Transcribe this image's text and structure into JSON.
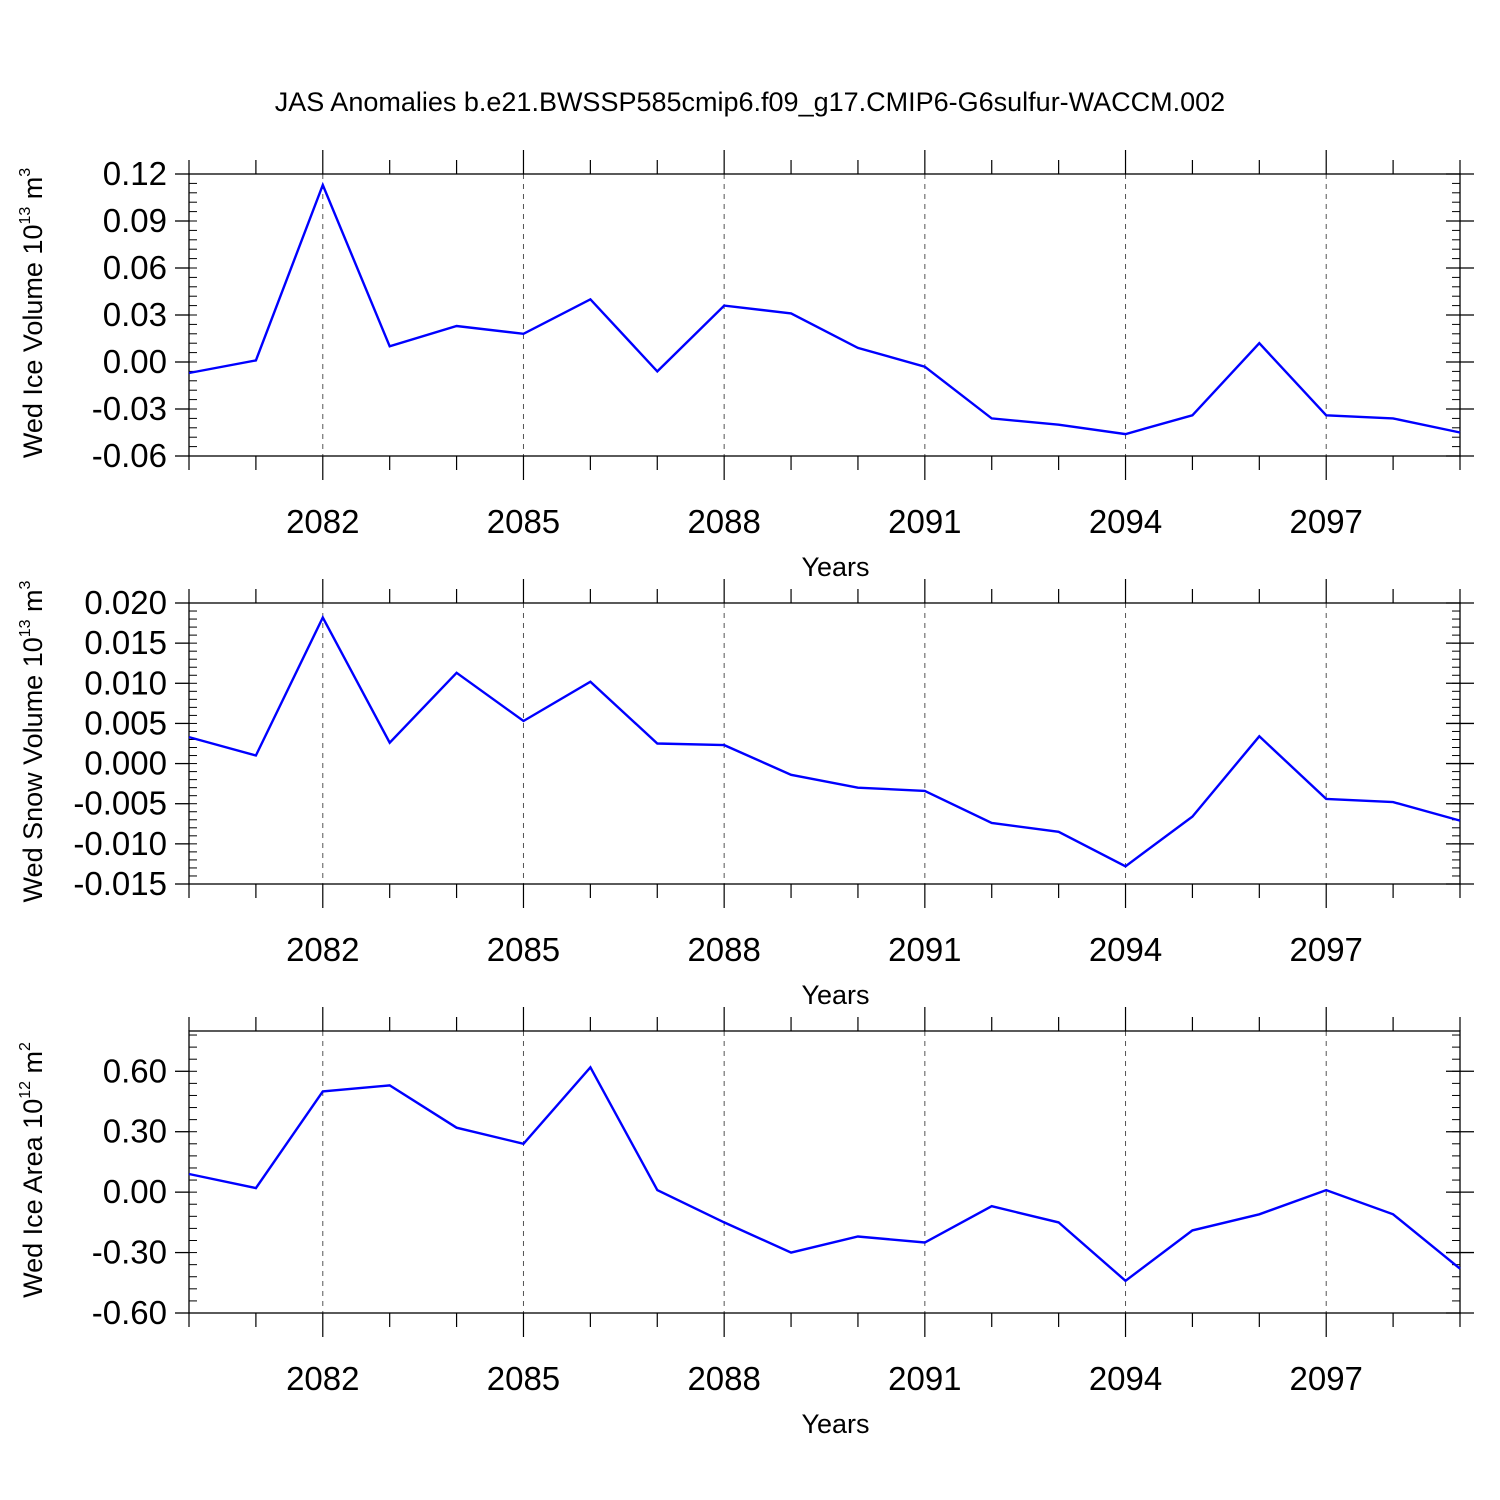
{
  "figure": {
    "title": "JAS Anomalies b.e21.BWSSP585cmip6.f09_g17.CMIP6-G6sulfur-WACCM.002"
  },
  "colors": {
    "line": "#0000ff",
    "axis": "#000000",
    "grid": "#555555",
    "background": "#ffffff"
  },
  "chart_data": [
    {
      "type": "line",
      "title": "",
      "xlabel": "Years",
      "ylabel_main": "Wed Ice Volume 10",
      "ylabel_exp": "13",
      "ylabel_unit": " m",
      "ylabel_unit_exp": "3",
      "x": [
        2080,
        2081,
        2082,
        2083,
        2084,
        2085,
        2086,
        2087,
        2088,
        2089,
        2090,
        2091,
        2092,
        2093,
        2094,
        2095,
        2096,
        2097,
        2098,
        2099
      ],
      "xlim": [
        2080,
        2099
      ],
      "xticks": [
        2082,
        2085,
        2088,
        2091,
        2094,
        2097
      ],
      "ylim": [
        -0.06,
        0.12
      ],
      "yticks": [
        -0.06,
        -0.03,
        0.0,
        0.03,
        0.06,
        0.09,
        0.12
      ],
      "ytick_labels": [
        "-0.06",
        "-0.03",
        "0.00",
        "0.03",
        "0.06",
        "0.09",
        "0.12"
      ],
      "series": [
        {
          "name": "Wed Ice Volume",
          "values": [
            -0.007,
            0.001,
            0.113,
            0.01,
            0.023,
            0.018,
            0.04,
            -0.006,
            0.036,
            0.031,
            0.009,
            -0.003,
            -0.036,
            -0.04,
            -0.046,
            -0.034,
            0.012,
            -0.034,
            -0.036,
            -0.045
          ]
        }
      ]
    },
    {
      "type": "line",
      "title": "",
      "xlabel": "Years",
      "ylabel_main": "Wed Snow Volume 10",
      "ylabel_exp": "13",
      "ylabel_unit": " m",
      "ylabel_unit_exp": "3",
      "x": [
        2080,
        2081,
        2082,
        2083,
        2084,
        2085,
        2086,
        2087,
        2088,
        2089,
        2090,
        2091,
        2092,
        2093,
        2094,
        2095,
        2096,
        2097,
        2098,
        2099
      ],
      "xlim": [
        2080,
        2099
      ],
      "xticks": [
        2082,
        2085,
        2088,
        2091,
        2094,
        2097
      ],
      "ylim": [
        -0.015,
        0.02
      ],
      "yticks": [
        -0.015,
        -0.01,
        -0.005,
        0.0,
        0.005,
        0.01,
        0.015,
        0.02
      ],
      "ytick_labels": [
        "-0.015",
        "-0.010",
        "-0.005",
        "0.000",
        "0.005",
        "0.010",
        "0.015",
        "0.020"
      ],
      "series": [
        {
          "name": "Wed Snow Volume",
          "values": [
            0.0033,
            0.001,
            0.0182,
            0.0026,
            0.0113,
            0.0053,
            0.0102,
            0.0025,
            0.0023,
            -0.0014,
            -0.003,
            -0.0034,
            -0.0074,
            -0.0085,
            -0.0128,
            -0.0066,
            0.0034,
            -0.0044,
            -0.0048,
            -0.0071
          ]
        }
      ]
    },
    {
      "type": "line",
      "title": "",
      "xlabel": "Years",
      "ylabel_main": "Wed Ice Area 10",
      "ylabel_exp": "12",
      "ylabel_unit": " m",
      "ylabel_unit_exp": "2",
      "x": [
        2080,
        2081,
        2082,
        2083,
        2084,
        2085,
        2086,
        2087,
        2088,
        2089,
        2090,
        2091,
        2092,
        2093,
        2094,
        2095,
        2096,
        2097,
        2098,
        2099
      ],
      "xlim": [
        2080,
        2099
      ],
      "xticks": [
        2082,
        2085,
        2088,
        2091,
        2094,
        2097
      ],
      "ylim": [
        -0.6,
        0.8
      ],
      "yticks": [
        -0.6,
        -0.3,
        0.0,
        0.3,
        0.6
      ],
      "ytick_labels": [
        "-0.60",
        "-0.30",
        "0.00",
        "0.30",
        "0.60"
      ],
      "series": [
        {
          "name": "Wed Ice Area",
          "values": [
            0.09,
            0.02,
            0.5,
            0.53,
            0.32,
            0.24,
            0.62,
            0.01,
            -0.15,
            -0.3,
            -0.22,
            -0.25,
            -0.07,
            -0.15,
            -0.44,
            -0.19,
            -0.11,
            0.01,
            -0.11,
            -0.38
          ]
        }
      ]
    }
  ]
}
